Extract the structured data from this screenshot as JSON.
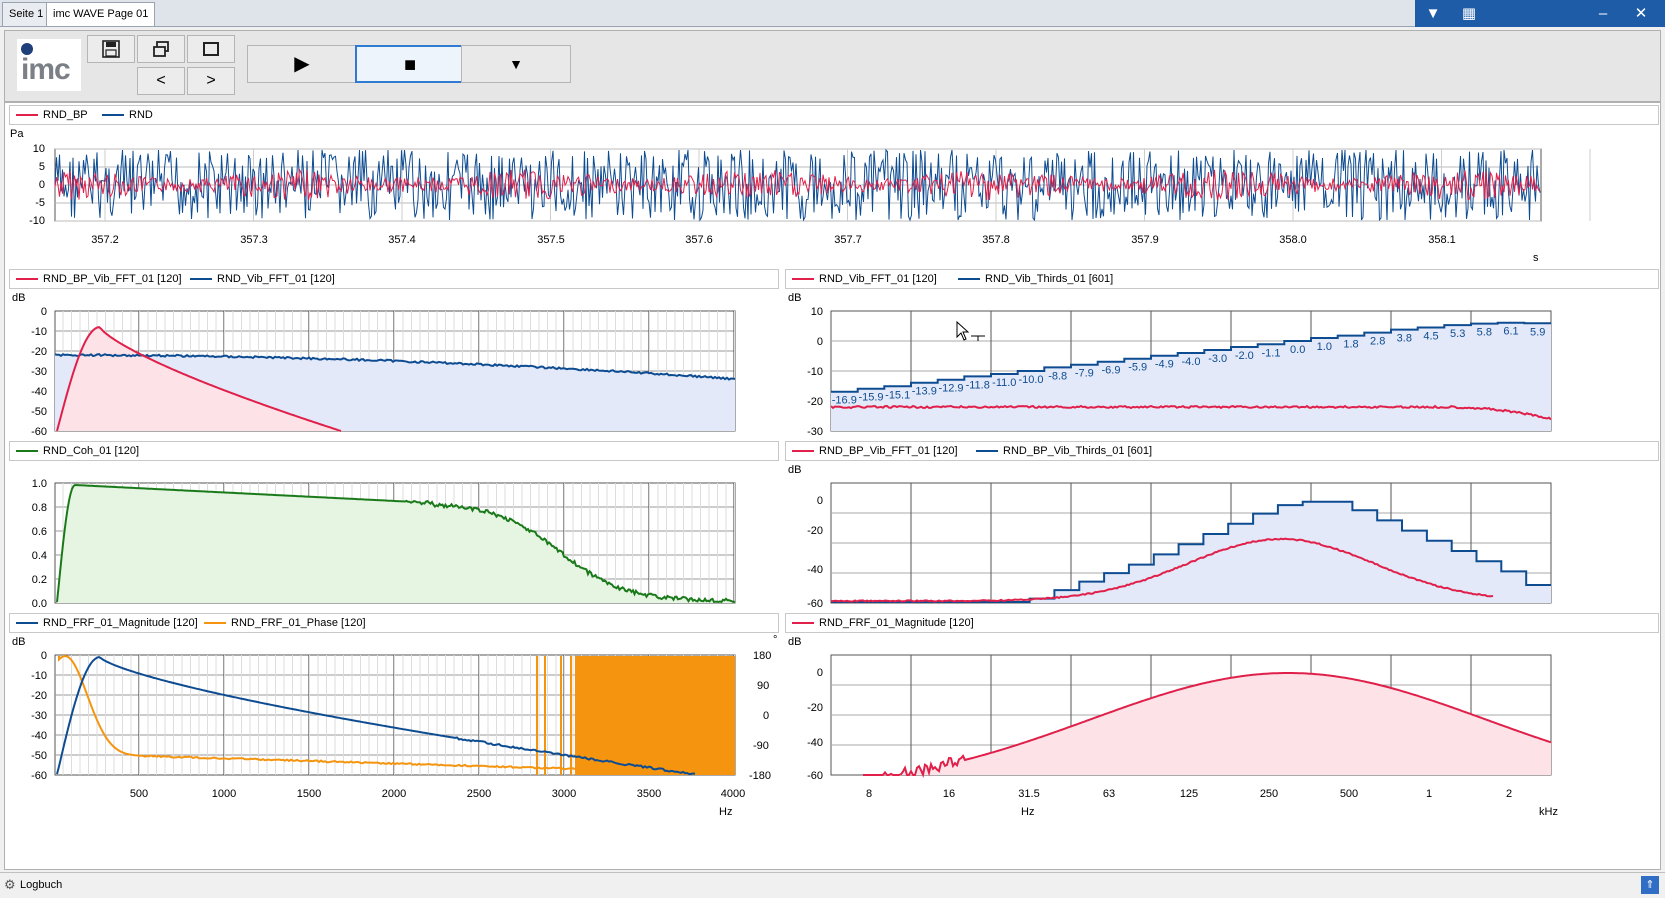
{
  "tabs": [
    {
      "label": "Seite 1"
    },
    {
      "label": "imc WAVE Page 01"
    }
  ],
  "window_buttons": {
    "menu": "▼",
    "grid": "▦",
    "minimize": "–",
    "close": "✕"
  },
  "logo": {
    "text": "imc"
  },
  "toolbar": {
    "save": "save",
    "restore": "restore",
    "maximize": "maximize",
    "prev": "<",
    "next": ">",
    "play": "▶",
    "stop": "■",
    "dropdown": "▼"
  },
  "colors": {
    "red": "#e0204a",
    "blue": "#0e4c92",
    "green": "#1a7a1a",
    "orange": "#f5950f"
  },
  "legends": {
    "top": [
      "RND_BP",
      "RND"
    ],
    "mid_left": [
      "RND_BP_Vib_FFT_01 [120]",
      "RND_Vib_FFT_01 [120]"
    ],
    "mid_right": [
      "RND_Vib_FFT_01 [120]",
      "RND_Vib_Thirds_01 [601]"
    ],
    "coh": [
      "RND_Coh_01 [120]"
    ],
    "bp_right": [
      "RND_BP_Vib_FFT_01 [120]",
      "RND_BP_Vib_Thirds_01 [601]"
    ],
    "frf_left": [
      "RND_FRF_01_Magnitude [120]",
      "RND_FRF_01_Phase [120]"
    ],
    "frf_right": [
      "RND_FRF_01_Magnitude [120]"
    ]
  },
  "axes": {
    "time": {
      "unit_y": "Pa",
      "unit_x": "s",
      "yticks": [
        "10",
        "5",
        "0",
        "-5",
        "-10"
      ],
      "xticks": [
        "357.2",
        "357.3",
        "357.4",
        "357.5",
        "357.6",
        "357.7",
        "357.8",
        "357.9",
        "358.0",
        "358.1"
      ]
    },
    "fft_left": {
      "unit_y": "dB",
      "yticks": [
        "0",
        "-10",
        "-20",
        "-30",
        "-40",
        "-50",
        "-60"
      ]
    },
    "fft_right": {
      "unit_y": "dB",
      "yticks": [
        "10",
        "0",
        "-10",
        "-20",
        "-30"
      ]
    },
    "coh": {
      "yticks": [
        "1.0",
        "0.8",
        "0.6",
        "0.4",
        "0.2",
        "0.0"
      ]
    },
    "bp_right": {
      "unit_y": "dB",
      "yticks": [
        "0",
        "-20",
        "-40",
        "-60"
      ]
    },
    "frf_left": {
      "unit_y": "dB",
      "unit_y2": "°",
      "unit_x": "Hz",
      "yticks": [
        "0",
        "-10",
        "-20",
        "-30",
        "-40",
        "-50",
        "-60"
      ],
      "y2ticks": [
        "180",
        "90",
        "0",
        "-90",
        "-180"
      ],
      "xticks": [
        "500",
        "1000",
        "1500",
        "2000",
        "2500",
        "3000",
        "3500",
        "4000"
      ]
    },
    "frf_right": {
      "unit_y": "dB",
      "unit_x_hz": "Hz",
      "unit_x_khz": "kHz",
      "yticks": [
        "0",
        "-20",
        "-40",
        "-60"
      ],
      "xticks": [
        "8",
        "16",
        "31.5",
        "63",
        "125",
        "250",
        "500",
        "1",
        "2"
      ]
    }
  },
  "thirds_labels": [
    "-16.9",
    "-15.9",
    "-15.1",
    "-13.9",
    "-12.9",
    "-11.8",
    "-11.0",
    "-10.0",
    "-8.8",
    "-7.9",
    "-6.9",
    "-5.9",
    "-4.9",
    "-4.0",
    "-3.0",
    "-2.0",
    "-1.1",
    "0.0",
    "1.0",
    "1.8",
    "2.8",
    "3.8",
    "4.5",
    "5.3",
    "5.8",
    "6.1",
    "5.9"
  ],
  "status": {
    "logbook": "Logbuch"
  }
}
